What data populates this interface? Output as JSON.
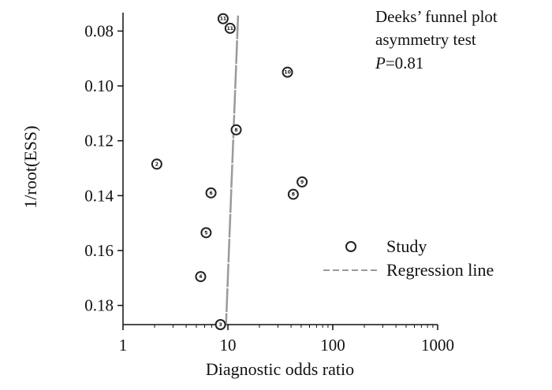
{
  "chart_data": {
    "type": "scatter",
    "xlabel": "Diagnostic odds ratio",
    "ylabel": "1/root(ESS)",
    "x_scale": "log",
    "xlim": [
      1,
      1000
    ],
    "ylim": [
      0.187,
      0.075
    ],
    "y_inverted": true,
    "x_ticks": [
      "1",
      "10",
      "100",
      "1000"
    ],
    "x_tick_values": [
      1,
      10,
      100,
      1000
    ],
    "y_ticks": [
      "0.08",
      "0.10",
      "0.12",
      "0.14",
      "0.16",
      "0.18"
    ],
    "y_tick_values": [
      0.08,
      0.1,
      0.12,
      0.14,
      0.16,
      0.18
    ],
    "grid": false,
    "legend_position": "right",
    "annotation": {
      "line1": "Deeks’ funnel plot",
      "line2": "asymmetry test",
      "p_italic": "P",
      "p_value": "=0.81"
    },
    "series": [
      {
        "name": "Study",
        "marker": "circle",
        "points": [
          {
            "x": 9.0,
            "y": 0.0755,
            "label": "11"
          },
          {
            "x": 10.5,
            "y": 0.079,
            "label": "11"
          },
          {
            "x": 37.0,
            "y": 0.095,
            "label": "10"
          },
          {
            "x": 12.0,
            "y": 0.116,
            "label": "8"
          },
          {
            "x": 2.1,
            "y": 0.1285,
            "label": "2"
          },
          {
            "x": 51.0,
            "y": 0.135,
            "label": "9"
          },
          {
            "x": 6.9,
            "y": 0.139,
            "label": "6"
          },
          {
            "x": 42.0,
            "y": 0.1395,
            "label": "8"
          },
          {
            "x": 6.2,
            "y": 0.1535,
            "label": "5"
          },
          {
            "x": 5.5,
            "y": 0.1695,
            "label": "4"
          },
          {
            "x": 8.5,
            "y": 0.187,
            "label": "3"
          }
        ]
      },
      {
        "name": "Regression line",
        "style": "dashed",
        "color": "#9a9a9a",
        "points": [
          {
            "x": 12.5,
            "y": 0.0755
          },
          {
            "x": 9.6,
            "y": 0.187
          }
        ]
      }
    ]
  }
}
